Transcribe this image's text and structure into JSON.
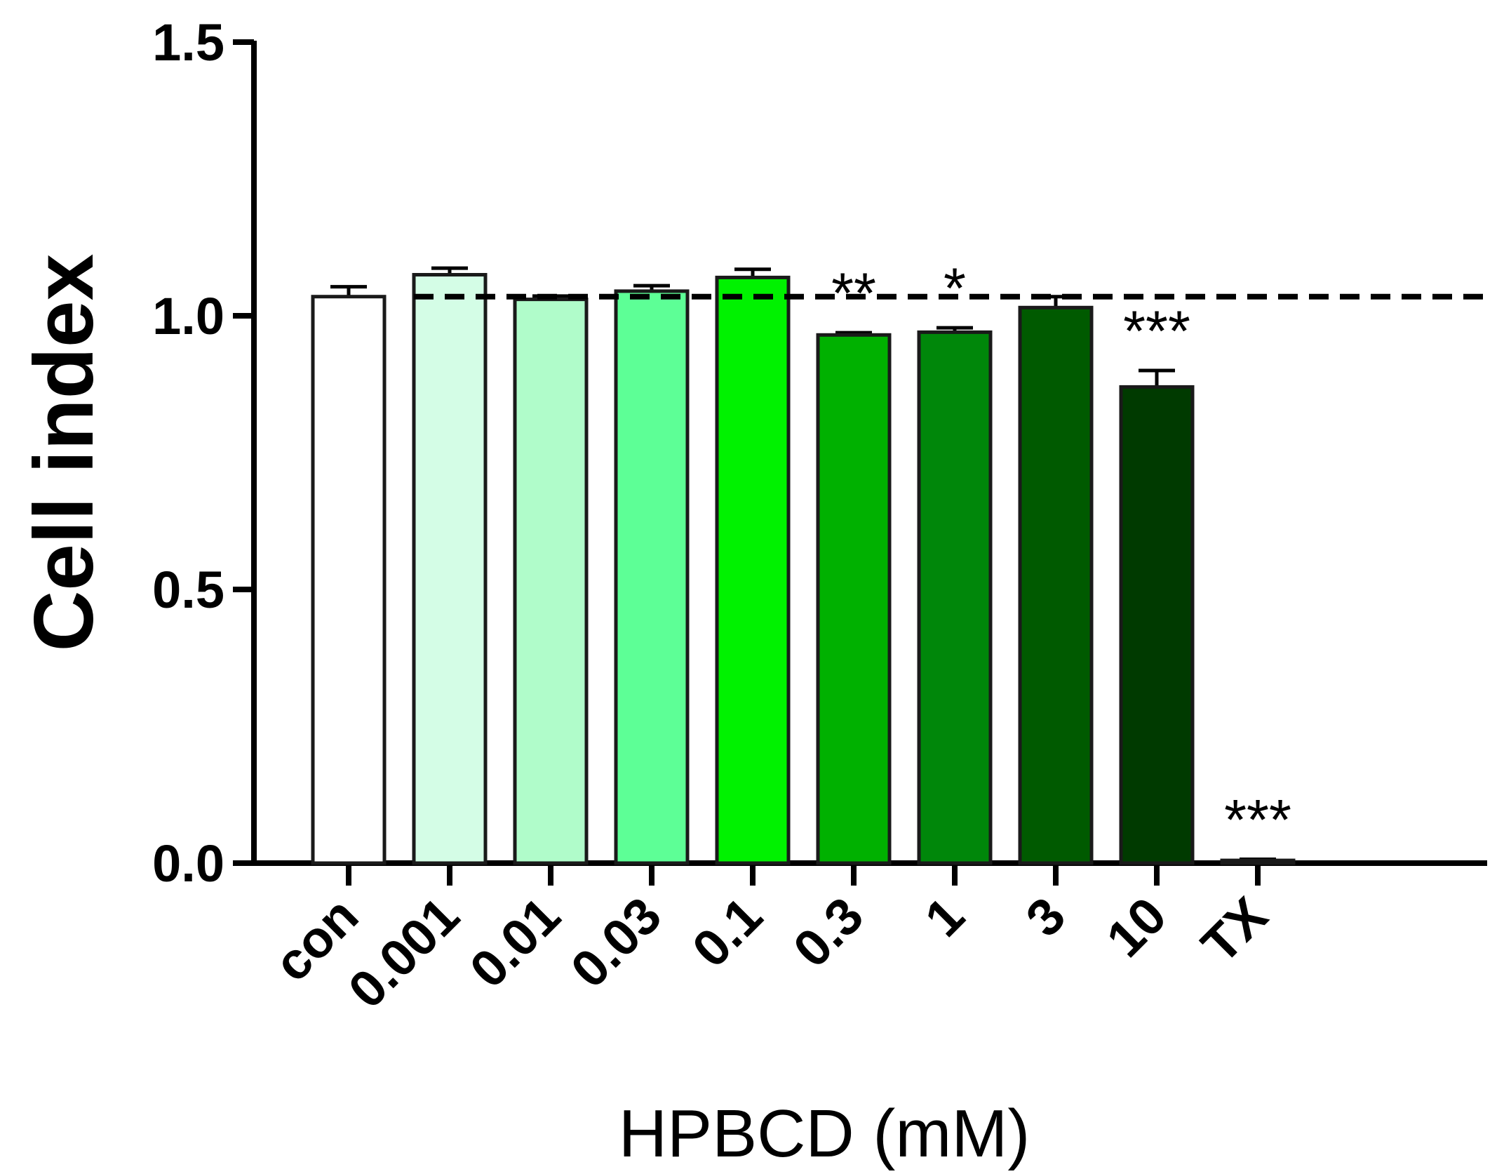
{
  "chart_data": {
    "type": "bar",
    "ylabel": "Cell index",
    "xlabel": "HPBCD (mM)",
    "ylim": [
      0,
      1.5
    ],
    "yticks": [
      "0.0",
      "0.5",
      "1.0",
      "1.5"
    ],
    "ytick_values": [
      0,
      0.5,
      1.0,
      1.5
    ],
    "reference_line": 1.035,
    "categories": [
      "con",
      "0.001",
      "0.01",
      "0.03",
      "0.1",
      "0.3",
      "1",
      "3",
      "10",
      "TX"
    ],
    "values": [
      1.035,
      1.075,
      1.03,
      1.045,
      1.07,
      0.965,
      0.97,
      1.015,
      0.87,
      0.005
    ],
    "errors": [
      0.018,
      0.012,
      0.006,
      0.01,
      0.015,
      0.004,
      0.008,
      0.02,
      0.03,
      0.002
    ],
    "significance": [
      "",
      "",
      "",
      "",
      "",
      "**",
      "*",
      "",
      "***",
      "***"
    ],
    "colors": [
      "#ffffff",
      "#d4fde6",
      "#b0fcca",
      "#5dff96",
      "#00f200",
      "#00b100",
      "#00870a",
      "#005a00",
      "#003a00",
      "#002a00"
    ],
    "grid": false,
    "legend": "none"
  }
}
